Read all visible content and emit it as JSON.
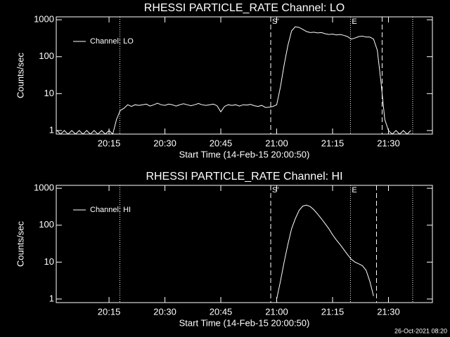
{
  "chart_data": [
    {
      "type": "line",
      "title": "RHESSI PARTICLE_RATE Channel: LO",
      "xlabel": "Start Time (14-Feb-15 20:00:50)",
      "ylabel": "Counts/sec",
      "log_y": true,
      "xlim": [
        0.833,
        101.8
      ],
      "ylim": [
        0.8,
        1200
      ],
      "xticks": [
        {
          "value": 15,
          "label": "20:15"
        },
        {
          "value": 30,
          "label": "20:30"
        },
        {
          "value": 45,
          "label": "20:45"
        },
        {
          "value": 60,
          "label": "21:00"
        },
        {
          "value": 75,
          "label": "21:15"
        },
        {
          "value": 90,
          "label": "21:30"
        }
      ],
      "yticks": [
        1,
        10,
        100,
        1000
      ],
      "legend": "upper left",
      "vlines": [
        {
          "x": 17.9,
          "style": "dotted"
        },
        {
          "x": 58.4,
          "style": "dashed"
        },
        {
          "x": 79.8,
          "style": "dotted"
        },
        {
          "x": 88.3,
          "style": "dashed"
        },
        {
          "x": 96.5,
          "style": "dotted"
        }
      ],
      "annotations": [
        {
          "x": 58.4,
          "text": "S'"
        },
        {
          "x": 79.8,
          "text": "E"
        }
      ],
      "series": [
        {
          "name": "Channel: LO",
          "color": "#ffffff",
          "x": [
            1,
            2,
            3,
            4,
            5,
            6,
            7,
            8,
            9,
            10,
            11,
            12,
            13,
            14,
            15,
            16,
            17,
            18,
            19,
            20,
            21,
            22,
            23,
            24,
            25,
            26,
            27,
            28,
            29,
            30,
            31,
            32,
            33,
            34,
            35,
            36,
            37,
            38,
            39,
            40,
            41,
            42,
            43,
            44,
            45,
            46,
            47,
            48,
            49,
            50,
            51,
            52,
            53,
            54,
            55,
            56,
            57,
            58,
            59,
            60,
            61,
            62,
            63,
            64,
            65,
            66,
            67,
            68,
            69,
            70,
            71,
            72,
            73,
            74,
            75,
            76,
            77,
            78,
            79,
            80,
            81,
            82,
            83,
            84,
            85,
            86,
            87,
            88,
            89,
            90,
            91,
            92,
            93,
            94,
            95,
            96
          ],
          "values": [
            1,
            0.8,
            1,
            0.8,
            1,
            0.8,
            1,
            0.8,
            1,
            0.8,
            1,
            0.8,
            1,
            0.8,
            1,
            0.8,
            2,
            3.5,
            4,
            5,
            4.5,
            5,
            4.8,
            5,
            5.2,
            4.6,
            5,
            5.5,
            5,
            4.8,
            5.2,
            5,
            4.6,
            5,
            5.3,
            5,
            4.7,
            5,
            5.4,
            5,
            4.8,
            5,
            5.2,
            4.7,
            3.2,
            4.5,
            5,
            4.8,
            5,
            4.6,
            5,
            4.9,
            5.1,
            4.7,
            4.5,
            4.8,
            4.2,
            4.3,
            4.5,
            5,
            15,
            60,
            200,
            500,
            650,
            620,
            550,
            480,
            450,
            460,
            440,
            450,
            420,
            400,
            410,
            390,
            400,
            380,
            350,
            300,
            320,
            350,
            360,
            340,
            340,
            300,
            150,
            20,
            2,
            1,
            0.8,
            1,
            0.8,
            1,
            0.8,
            1
          ]
        }
      ]
    },
    {
      "type": "line",
      "title": "RHESSI PARTICLE_RATE Channel: HI",
      "xlabel": "Start Time (14-Feb-15 20:00:50)",
      "ylabel": "Counts/sec",
      "log_y": true,
      "xlim": [
        0.833,
        101.8
      ],
      "ylim": [
        0.8,
        1200
      ],
      "xticks": [
        {
          "value": 15,
          "label": "20:15"
        },
        {
          "value": 30,
          "label": "20:30"
        },
        {
          "value": 45,
          "label": "20:45"
        },
        {
          "value": 60,
          "label": "21:00"
        },
        {
          "value": 75,
          "label": "21:15"
        },
        {
          "value": 90,
          "label": "21:30"
        }
      ],
      "yticks": [
        1,
        10,
        100,
        1000
      ],
      "legend": "upper left",
      "vlines": [
        {
          "x": 17.9,
          "style": "dotted"
        },
        {
          "x": 58.4,
          "style": "dashed"
        },
        {
          "x": 79.8,
          "style": "dotted"
        },
        {
          "x": 86.8,
          "style": "dashed"
        },
        {
          "x": 96.5,
          "style": "dotted"
        }
      ],
      "annotations": [
        {
          "x": 58.4,
          "text": "S'"
        },
        {
          "x": 79.8,
          "text": "E"
        }
      ],
      "series": [
        {
          "name": "Channel: HI",
          "color": "#ffffff",
          "x": [
            60,
            61,
            62,
            63,
            64,
            65,
            66,
            67,
            68,
            69,
            70,
            71,
            72,
            73,
            74,
            75,
            76,
            77,
            78,
            79,
            80,
            81,
            82,
            83,
            84,
            85,
            86
          ],
          "values": [
            1,
            3,
            10,
            30,
            80,
            150,
            250,
            330,
            350,
            320,
            260,
            200,
            150,
            110,
            80,
            55,
            40,
            30,
            22,
            16,
            12,
            10,
            9,
            8,
            6,
            3,
            1.2
          ]
        }
      ]
    }
  ],
  "footer": "26-Oct-2021 08:20"
}
